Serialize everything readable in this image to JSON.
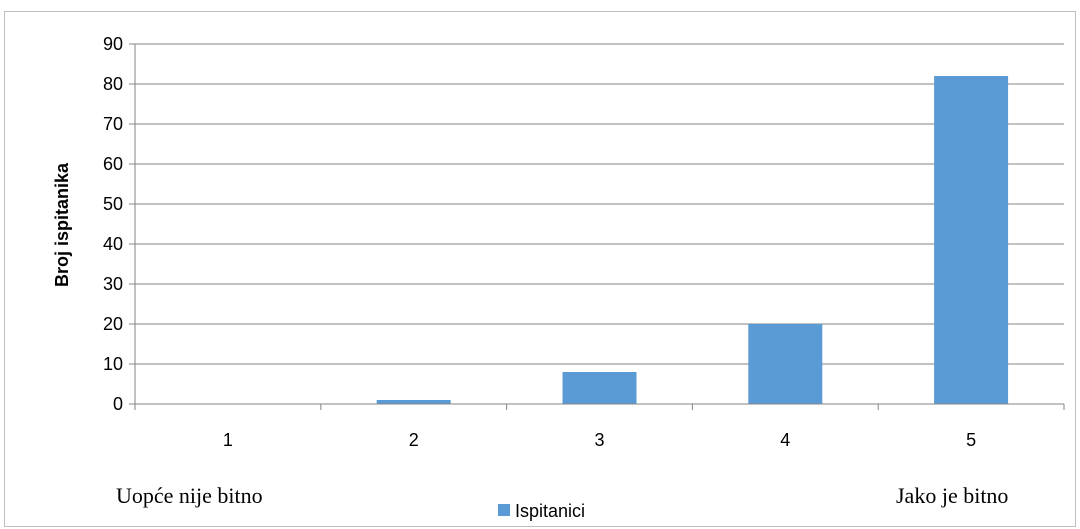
{
  "chart_data": {
    "type": "bar",
    "categories": [
      "1",
      "2",
      "3",
      "4",
      "5"
    ],
    "series": [
      {
        "name": "Ispitanici",
        "values": [
          0,
          1,
          8,
          20,
          82
        ],
        "color": "#5b9bd5"
      }
    ],
    "ylabel": "Broj ispitanika",
    "ylim": [
      0,
      90
    ],
    "ytick_step": 10,
    "grid": true,
    "legend_position": "bottom",
    "left_annotation": "Uopće nije bitno",
    "right_annotation": "Jako je bitno"
  }
}
